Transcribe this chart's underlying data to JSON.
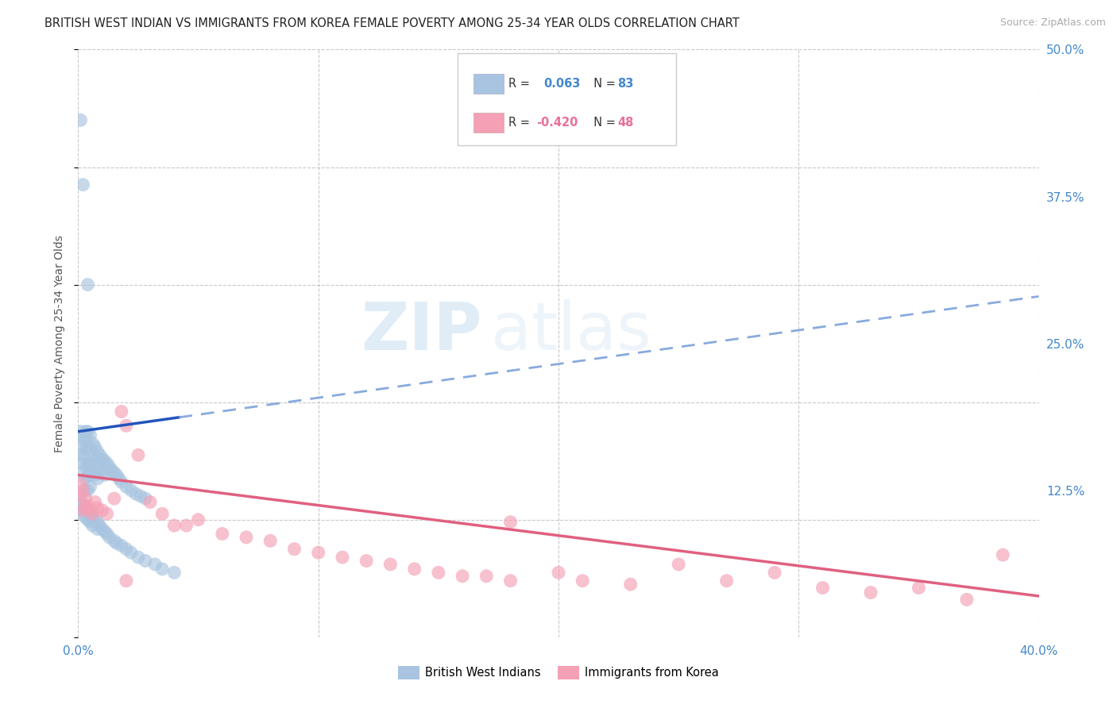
{
  "title": "BRITISH WEST INDIAN VS IMMIGRANTS FROM KOREA FEMALE POVERTY AMONG 25-34 YEAR OLDS CORRELATION CHART",
  "source": "Source: ZipAtlas.com",
  "ylabel": "Female Poverty Among 25-34 Year Olds",
  "xlim": [
    0.0,
    0.4
  ],
  "ylim": [
    0.0,
    0.5
  ],
  "r_blue": 0.063,
  "n_blue": 83,
  "r_pink": -0.42,
  "n_pink": 48,
  "blue_color": "#a8c4e0",
  "pink_color": "#f4a0b5",
  "blue_line_solid_color": "#2255bb",
  "pink_line_color": "#e06080",
  "blue_line_dash_color": "#88aadd",
  "watermark_zip": "ZIP",
  "watermark_atlas": "atlas",
  "blue_x": [
    0.001,
    0.001,
    0.001,
    0.002,
    0.002,
    0.002,
    0.002,
    0.003,
    0.003,
    0.003,
    0.003,
    0.003,
    0.003,
    0.004,
    0.004,
    0.004,
    0.004,
    0.004,
    0.005,
    0.005,
    0.005,
    0.005,
    0.005,
    0.006,
    0.006,
    0.006,
    0.007,
    0.007,
    0.007,
    0.008,
    0.008,
    0.008,
    0.009,
    0.009,
    0.01,
    0.01,
    0.011,
    0.011,
    0.012,
    0.013,
    0.014,
    0.015,
    0.016,
    0.017,
    0.018,
    0.02,
    0.022,
    0.024,
    0.026,
    0.028,
    0.001,
    0.001,
    0.002,
    0.002,
    0.003,
    0.003,
    0.004,
    0.004,
    0.005,
    0.005,
    0.006,
    0.006,
    0.007,
    0.008,
    0.008,
    0.009,
    0.01,
    0.011,
    0.012,
    0.013,
    0.015,
    0.016,
    0.018,
    0.02,
    0.022,
    0.025,
    0.028,
    0.032,
    0.035,
    0.04,
    0.001,
    0.002,
    0.004
  ],
  "blue_y": [
    0.175,
    0.17,
    0.155,
    0.165,
    0.155,
    0.148,
    0.14,
    0.175,
    0.168,
    0.16,
    0.145,
    0.135,
    0.125,
    0.175,
    0.162,
    0.148,
    0.138,
    0.125,
    0.172,
    0.16,
    0.148,
    0.138,
    0.128,
    0.165,
    0.152,
    0.14,
    0.162,
    0.15,
    0.138,
    0.158,
    0.145,
    0.135,
    0.155,
    0.142,
    0.152,
    0.14,
    0.15,
    0.138,
    0.148,
    0.145,
    0.142,
    0.14,
    0.138,
    0.135,
    0.132,
    0.128,
    0.125,
    0.122,
    0.12,
    0.118,
    0.115,
    0.108,
    0.112,
    0.105,
    0.11,
    0.102,
    0.108,
    0.1,
    0.105,
    0.098,
    0.102,
    0.095,
    0.1,
    0.098,
    0.092,
    0.095,
    0.092,
    0.09,
    0.088,
    0.085,
    0.082,
    0.08,
    0.078,
    0.075,
    0.072,
    0.068,
    0.065,
    0.062,
    0.058,
    0.055,
    0.44,
    0.385,
    0.3
  ],
  "pink_x": [
    0.001,
    0.001,
    0.002,
    0.003,
    0.003,
    0.004,
    0.005,
    0.006,
    0.007,
    0.008,
    0.01,
    0.012,
    0.015,
    0.018,
    0.02,
    0.025,
    0.03,
    0.035,
    0.04,
    0.045,
    0.05,
    0.06,
    0.07,
    0.08,
    0.09,
    0.1,
    0.11,
    0.12,
    0.13,
    0.14,
    0.15,
    0.16,
    0.17,
    0.18,
    0.2,
    0.21,
    0.23,
    0.25,
    0.27,
    0.29,
    0.31,
    0.33,
    0.35,
    0.37,
    0.385,
    0.002,
    0.02,
    0.18
  ],
  "pink_y": [
    0.13,
    0.12,
    0.125,
    0.118,
    0.11,
    0.112,
    0.108,
    0.105,
    0.115,
    0.11,
    0.108,
    0.105,
    0.118,
    0.192,
    0.18,
    0.155,
    0.115,
    0.105,
    0.095,
    0.095,
    0.1,
    0.088,
    0.085,
    0.082,
    0.075,
    0.072,
    0.068,
    0.065,
    0.062,
    0.058,
    0.055,
    0.052,
    0.052,
    0.048,
    0.055,
    0.048,
    0.045,
    0.062,
    0.048,
    0.055,
    0.042,
    0.038,
    0.042,
    0.032,
    0.07,
    0.108,
    0.048,
    0.098
  ],
  "background_color": "#ffffff",
  "grid_color": "#bbbbbb"
}
